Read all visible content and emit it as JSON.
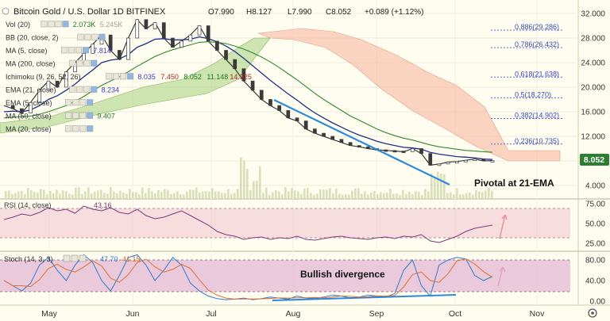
{
  "header": {
    "title": "Bitcoin Gold / U.S. Dollar  1D  BITFINEX",
    "ohlc": [
      "O7.990",
      "H8.127",
      "L7.990",
      "C8.052",
      "+0.089 (+1.12%)"
    ]
  },
  "indicators": [
    {
      "label": "Vol (20)",
      "value": "2.073K",
      "value2": "5.245K"
    },
    {
      "label": "BB (20, close, 2)",
      "value": ""
    },
    {
      "label": "MA (5, close)",
      "value": "7.814"
    },
    {
      "label": "MA (200, close)",
      "value": ""
    },
    {
      "label": "Ichimoku (9, 26, 52, 26)",
      "values": [
        "8.035",
        "7.450",
        "8.052",
        "11.148",
        "14.325"
      ]
    },
    {
      "label": "EMA (21, close)",
      "value": "8.234"
    },
    {
      "label": "EMA (5, close)",
      "value": ""
    },
    {
      "label": "MA (50, close)",
      "value": "9.407"
    },
    {
      "label": "MA (20, close)",
      "value": ""
    }
  ],
  "annotations": {
    "pivot": "Pivotal at 21-EMA",
    "divergence": "Bullish divergence"
  },
  "fib_levels": [
    {
      "label": "0.886(29.286)",
      "value": 29.286
    },
    {
      "label": "0.786(26.432)",
      "value": 26.432
    },
    {
      "label": "0.618(21.638)",
      "value": 21.638
    },
    {
      "label": "0.5(18.270)",
      "value": 18.27
    },
    {
      "label": "0.382(14.902)",
      "value": 14.902
    },
    {
      "label": "0.236(10.735)",
      "value": 10.735
    }
  ],
  "rsi": {
    "label": "RSI (14, close)",
    "value": "43.16",
    "ticks": [
      "75.00",
      "50.00",
      "25.00"
    ]
  },
  "stoch": {
    "label": "Stoch (14, 3, 3)",
    "k": "47.70",
    "d": "41.15",
    "ticks": [
      "80.00",
      "40.00",
      "0.00"
    ]
  },
  "chart_data": {
    "type": "line",
    "title": "Bitcoin Gold / U.S. Dollar",
    "x_ticks": [
      "May",
      "Jun",
      "Jul",
      "Aug",
      "Sep",
      "Oct",
      "Nov"
    ],
    "y_ticks": [
      "32.000",
      "28.000",
      "24.000",
      "20.000",
      "16.000",
      "12.000",
      "8.000",
      "4.000"
    ],
    "ylim": [
      2.5,
      33
    ],
    "last_price": "8.052",
    "price_series": [
      {
        "name": "close",
        "values": [
          17.0,
          16.5,
          15.8,
          17.5,
          19.5,
          21.0,
          20.0,
          22.5,
          24.0,
          25.5,
          27.0,
          28.5,
          26.0,
          24.5,
          28.0,
          31.0,
          29.5,
          30.5,
          28.0,
          26.5,
          27.5,
          28.5,
          30.0,
          27.5,
          26.0,
          24.5,
          23.0,
          21.0,
          19.5,
          18.0,
          17.0,
          16.2,
          15.0,
          14.5,
          13.2,
          12.5,
          12.0,
          11.5,
          11.0,
          10.5,
          10.3,
          10.0,
          9.8,
          9.7,
          9.6,
          9.5,
          10.0,
          9.2,
          7.3,
          7.5,
          7.8,
          7.9,
          8.1,
          8.3,
          8.0,
          8.05
        ]
      },
      {
        "name": "EMA (21, close)",
        "values": [
          16.0,
          16.1,
          16.0,
          16.3,
          17.0,
          18.0,
          18.6,
          19.5,
          20.5,
          21.7,
          22.8,
          24.0,
          24.4,
          24.6,
          25.3,
          26.5,
          27.1,
          27.8,
          27.9,
          27.7,
          27.7,
          27.8,
          28.2,
          27.9,
          27.4,
          26.7,
          25.8,
          24.7,
          23.5,
          22.3,
          21.1,
          20.0,
          18.9,
          17.9,
          16.8,
          15.8,
          15.0,
          14.2,
          13.5,
          12.8,
          12.2,
          11.7,
          11.2,
          10.8,
          10.5,
          10.2,
          10.1,
          9.9,
          9.4,
          9.1,
          8.9,
          8.7,
          8.6,
          8.5,
          8.3,
          8.23
        ]
      },
      {
        "name": "MA (50, close)",
        "values": [
          15.0,
          15.1,
          15.2,
          15.3,
          15.6,
          16.0,
          16.5,
          17.0,
          17.7,
          18.5,
          19.4,
          20.3,
          21.0,
          21.7,
          22.5,
          23.4,
          24.2,
          25.0,
          25.6,
          26.1,
          26.5,
          26.9,
          27.3,
          27.4,
          27.3,
          27.1,
          26.7,
          26.2,
          25.6,
          24.9,
          24.1,
          23.2,
          22.2,
          21.2,
          20.1,
          19.0,
          18.0,
          17.1,
          16.2,
          15.3,
          14.6,
          13.9,
          13.2,
          12.6,
          12.1,
          11.7,
          11.4,
          11.0,
          10.6,
          10.3,
          10.1,
          9.9,
          9.7,
          9.6,
          9.5,
          9.41
        ]
      }
    ]
  }
}
